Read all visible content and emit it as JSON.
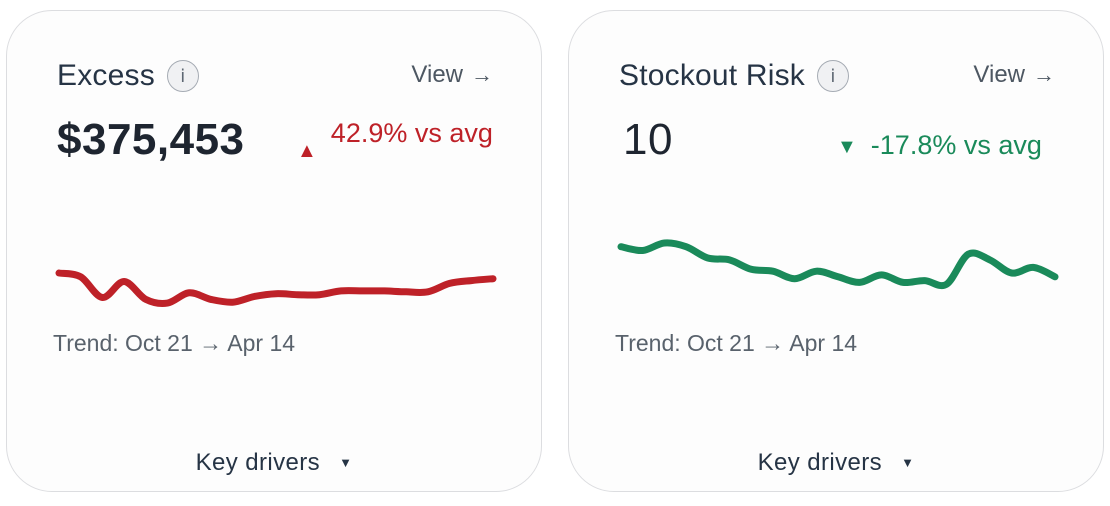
{
  "colors": {
    "negative": "#be2128",
    "positive": "#1a8a5a",
    "text": "#263445"
  },
  "cards": [
    {
      "title": "Excess",
      "info_icon": "i",
      "view_label": "View",
      "view_arrow": "→",
      "value": "$375,453",
      "delta_icon": "▲",
      "delta_text": "42.9% vs avg",
      "trend_label": "Trend: Oct 21 → Apr 14",
      "drivers_label": "Key drivers",
      "drivers_caret": "▼",
      "sparkline": [
        0.34,
        0.3,
        0.08,
        0.25,
        0.06,
        0.02,
        0.13,
        0.06,
        0.03,
        0.09,
        0.12,
        0.11,
        0.11,
        0.15,
        0.15,
        0.15,
        0.14,
        0.14,
        0.23,
        0.26,
        0.28
      ]
    },
    {
      "title": "Stockout Risk",
      "info_icon": "i",
      "view_label": "View",
      "view_arrow": "→",
      "value": "10",
      "delta_icon": "▼",
      "delta_text": "-17.8% vs avg",
      "trend_label": "Trend: Oct 21 → Apr 14",
      "drivers_label": "Key drivers",
      "drivers_caret": "▼",
      "sparkline": [
        0.62,
        0.58,
        0.66,
        0.62,
        0.5,
        0.48,
        0.38,
        0.36,
        0.28,
        0.36,
        0.3,
        0.24,
        0.32,
        0.24,
        0.26,
        0.22,
        0.54,
        0.48,
        0.34,
        0.4,
        0.3
      ]
    }
  ]
}
